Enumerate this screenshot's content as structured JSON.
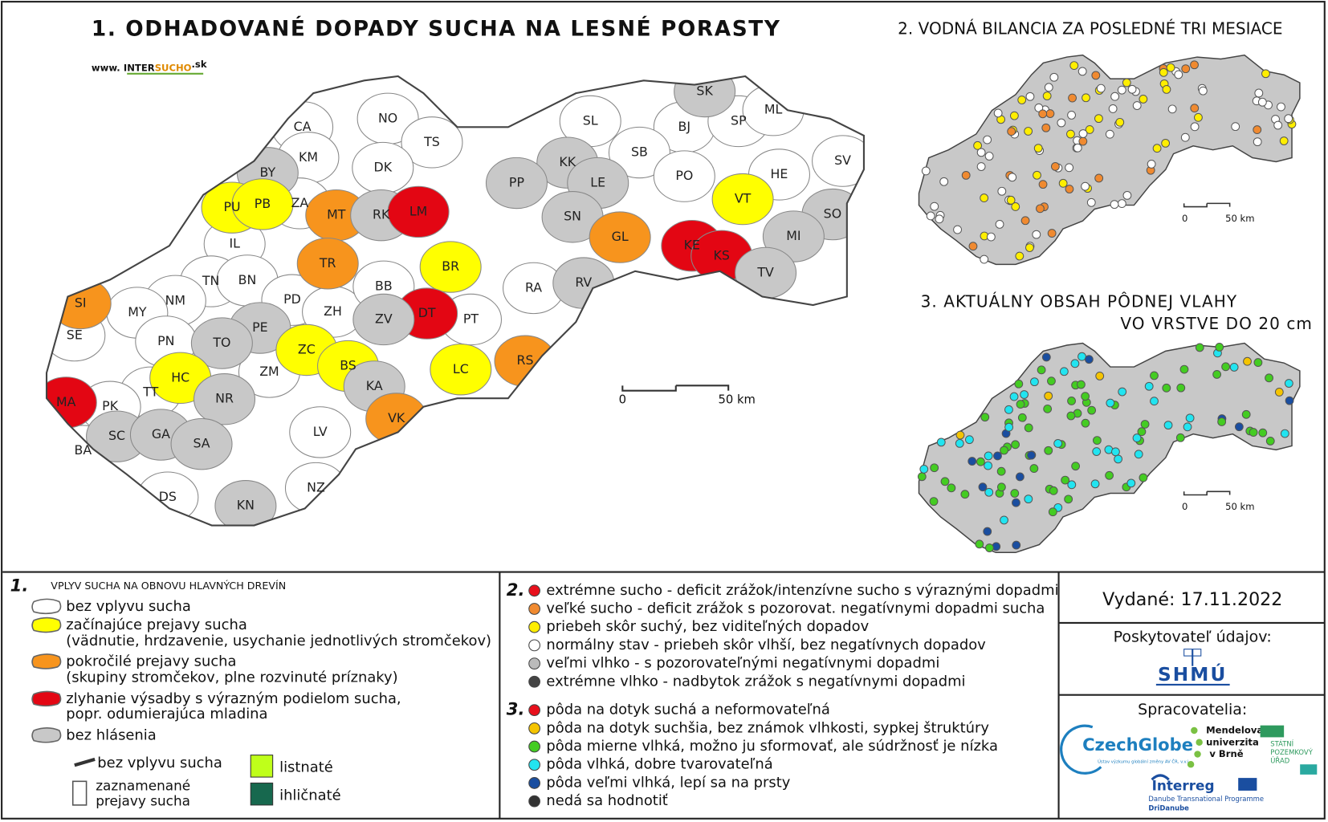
{
  "map1": {
    "title": "1. ODHADOVANÉ DOPADY SUCHA NA LESNÉ PORASTY",
    "logo": [
      "www.",
      "INTER",
      "SUCHO",
      ".sk"
    ],
    "scale": {
      "zero": "0",
      "distance": "50 km"
    },
    "districts": [
      {
        "label": "CA",
        "color": "#ffffff"
      },
      {
        "label": "NO",
        "color": "#ffffff"
      },
      {
        "label": "TS",
        "color": "#ffffff"
      },
      {
        "label": "SL",
        "color": "#ffffff"
      },
      {
        "label": "BJ",
        "color": "#ffffff"
      },
      {
        "label": "SK",
        "color": "#c8c8c8"
      },
      {
        "label": "SP",
        "color": "#ffffff"
      },
      {
        "label": "ML",
        "color": "#ffffff"
      },
      {
        "label": "SV",
        "color": "#ffffff"
      },
      {
        "label": "KM",
        "color": "#ffffff"
      },
      {
        "label": "BY",
        "color": "#c8c8c8"
      },
      {
        "label": "DK",
        "color": "#ffffff"
      },
      {
        "label": "KK",
        "color": "#c8c8c8"
      },
      {
        "label": "SB",
        "color": "#ffffff"
      },
      {
        "label": "PO",
        "color": "#ffffff"
      },
      {
        "label": "HE",
        "color": "#ffffff"
      },
      {
        "label": "PU",
        "color": "#ffff00"
      },
      {
        "label": "PB",
        "color": "#ffff00"
      },
      {
        "label": "ZA",
        "color": "#ffffff"
      },
      {
        "label": "MT",
        "color": "#f7941d"
      },
      {
        "label": "RK",
        "color": "#c8c8c8"
      },
      {
        "label": "LM",
        "color": "#e30613"
      },
      {
        "label": "PP",
        "color": "#c8c8c8"
      },
      {
        "label": "LE",
        "color": "#c8c8c8"
      },
      {
        "label": "VT",
        "color": "#ffff00"
      },
      {
        "label": "SO",
        "color": "#c8c8c8"
      },
      {
        "label": "IL",
        "color": "#ffffff"
      },
      {
        "label": "TN",
        "color": "#ffffff"
      },
      {
        "label": "SN",
        "color": "#c8c8c8"
      },
      {
        "label": "GL",
        "color": "#f7941d"
      },
      {
        "label": "KE",
        "color": "#e30613"
      },
      {
        "label": "KS",
        "color": "#e30613"
      },
      {
        "label": "MI",
        "color": "#c8c8c8"
      },
      {
        "label": "TR",
        "color": "#f7941d"
      },
      {
        "label": "BR",
        "color": "#ffff00"
      },
      {
        "label": "RA",
        "color": "#ffffff"
      },
      {
        "label": "TV",
        "color": "#c8c8c8"
      },
      {
        "label": "RV",
        "color": "#c8c8c8"
      },
      {
        "label": "SI",
        "color": "#f7941d"
      },
      {
        "label": "NM",
        "color": "#ffffff"
      },
      {
        "label": "BN",
        "color": "#ffffff"
      },
      {
        "label": "PD",
        "color": "#ffffff"
      },
      {
        "label": "ZH",
        "color": "#ffffff"
      },
      {
        "label": "BB",
        "color": "#ffffff"
      },
      {
        "label": "MY",
        "color": "#ffffff"
      },
      {
        "label": "SE",
        "color": "#ffffff"
      },
      {
        "label": "PN",
        "color": "#ffffff"
      },
      {
        "label": "PE",
        "color": "#c8c8c8"
      },
      {
        "label": "DT",
        "color": "#e30613"
      },
      {
        "label": "PT",
        "color": "#ffffff"
      },
      {
        "label": "ZV",
        "color": "#c8c8c8"
      },
      {
        "label": "TO",
        "color": "#c8c8c8"
      },
      {
        "label": "ZC",
        "color": "#ffff00"
      },
      {
        "label": "BS",
        "color": "#ffff00"
      },
      {
        "label": "RS",
        "color": "#f7941d"
      },
      {
        "label": "HC",
        "color": "#ffff00"
      },
      {
        "label": "ZM",
        "color": "#ffffff"
      },
      {
        "label": "LC",
        "color": "#ffff00"
      },
      {
        "label": "MA",
        "color": "#e30613"
      },
      {
        "label": "TT",
        "color": "#ffffff"
      },
      {
        "label": "NR",
        "color": "#c8c8c8"
      },
      {
        "label": "KA",
        "color": "#c8c8c8"
      },
      {
        "label": "PK",
        "color": "#ffffff"
      },
      {
        "label": "SC",
        "color": "#c8c8c8"
      },
      {
        "label": "GA",
        "color": "#c8c8c8"
      },
      {
        "label": "LV",
        "color": "#ffffff"
      },
      {
        "label": "VK",
        "color": "#f7941d"
      },
      {
        "label": "BA",
        "color": "#ffffff"
      },
      {
        "label": "SA",
        "color": "#c8c8c8"
      },
      {
        "label": "DS",
        "color": "#ffffff"
      },
      {
        "label": "NZ",
        "color": "#ffffff"
      },
      {
        "label": "KN",
        "color": "#c8c8c8"
      }
    ]
  },
  "map2": {
    "title": "2. VODNÁ BILANCIA ZA POSLEDNÉ TRI MESIACE",
    "scale": {
      "zero": "0",
      "distance": "50 km"
    }
  },
  "map3": {
    "title_lines": [
      "3. AKTUÁLNY OBSAH PÔDNEJ VLAHY",
      "VO VRSTVE DO 20 cm"
    ],
    "scale": {
      "zero": "0",
      "distance": "50 km"
    }
  },
  "legend1": {
    "number": "1.",
    "heading": "VPLYV SUCHA NA OBNOVU HLAVNÝCH DREVÍN",
    "items": [
      {
        "lines": [
          "bez vplyvu sucha"
        ],
        "color": "#ffffff"
      },
      {
        "lines": [
          "začínajúce prejavy sucha",
          "(vädnutie, hrdzavenie, usychanie jednotlivých stromčekov)"
        ],
        "color": "#ffff00"
      },
      {
        "lines": [
          "pokročilé prejavy sucha",
          "(skupiny stromčekov, plne rozvinuté príznaky)"
        ],
        "color": "#f7941d"
      },
      {
        "lines": [
          "zlyhanie výsadby s výrazným podielom sucha,",
          "popr. odumierajúca mladina"
        ],
        "color": "#e30613"
      },
      {
        "lines": [
          "bez hlásenia"
        ],
        "color": "#c8c8c8"
      }
    ],
    "bar_none": "bez vplyvu sucha",
    "bar_signs": [
      "zaznamenané",
      "prejavy sucha"
    ],
    "broadleaf": {
      "label": "listnaté",
      "color": "#bfff1a"
    },
    "conifer": {
      "label": "ihličnaté",
      "color": "#17684e"
    }
  },
  "legend2": {
    "number": "2.",
    "items": [
      {
        "label": "extrémne sucho - deficit zrážok/intenzívne sucho s výraznými dopadmi",
        "color": "#e8101c"
      },
      {
        "label": "veľké sucho - deficit zrážok s pozorovat. negatívnymi dopadmi sucha",
        "color": "#f08a30"
      },
      {
        "label": "priebeh skôr suchý, bez viditeľných dopadov",
        "color": "#ffee00"
      },
      {
        "label": "normálny stav - priebeh skôr vlhší, bez negatívnych dopadov",
        "color": "#ffffff"
      },
      {
        "label": "veľmi vlhko - s pozorovateľnými negatívnymi dopadmi",
        "color": "#bbbbbb"
      },
      {
        "label": "extrémne vlhko - nadbytok zrážok s negatívnymi dopadmi",
        "color": "#444444"
      }
    ]
  },
  "legend3": {
    "number": "3.",
    "items": [
      {
        "label": "pôda na dotyk suchá a neformovateľná",
        "color": "#e8101c"
      },
      {
        "label": "pôda na dotyk suchšia, bez známok vlhkosti, sypkej štruktúry",
        "color": "#f5c400"
      },
      {
        "label": "pôda mierne vlhká, možno ju sformovať, ale súdržnosť je nízka",
        "color": "#44cc22"
      },
      {
        "label": "pôda vlhká, dobre tvarovateľná",
        "color": "#22e4f0"
      },
      {
        "label": "pôda veľmi vlhká, lepí sa na prsty",
        "color": "#1a4ea0"
      },
      {
        "label": "nedá sa hodnotiť",
        "color": "#333333"
      }
    ]
  },
  "info": {
    "issued": "Vydané: 17.11.2022",
    "provider_label": "Poskytovateľ údajov:",
    "provider": "SHMÚ",
    "processors_label": "Spracovatelia:",
    "czechglobe": [
      "CzechGlobe",
      "Ústav výzkumu globální změny AV ČR, v.v.i."
    ],
    "mendel": [
      "Mendelova",
      "univerzita",
      "v Brně"
    ],
    "spu": [
      "STÁTNÍ",
      "POZEMKOVÝ",
      "ÚŘAD"
    ],
    "interreg": [
      "Interreg",
      "Danube Transnational Programme",
      "DriDanube"
    ]
  }
}
